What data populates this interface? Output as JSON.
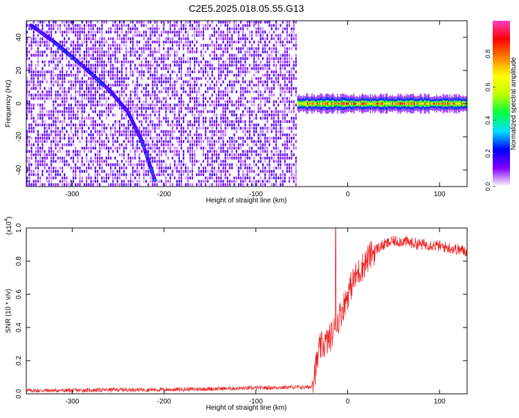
{
  "title": "C2E5.2025.018.05.55.G13",
  "chart_data": [
    {
      "type": "heatmap",
      "xlabel": "Height of straight line (km)",
      "ylabel": "Frequency (Hz)",
      "xlim": [
        -350,
        130
      ],
      "ylim": [
        -50,
        50
      ],
      "xticks": [
        -300,
        -200,
        -100,
        0,
        100
      ],
      "xtick_labels": [
        "-300",
        "-200",
        "-100",
        "0",
        "100"
      ],
      "yticks": [
        -40,
        -20,
        0,
        20,
        40
      ],
      "ytick_labels": [
        "-40",
        "-20",
        "0",
        "20",
        "40"
      ],
      "noise_region_x": [
        -350,
        -55
      ],
      "blank_region_x": [
        -55,
        130
      ],
      "signal_trace": {
        "description_points": [
          [
            -345,
            47
          ],
          [
            -320,
            37
          ],
          [
            -290,
            23
          ],
          [
            -260,
            8
          ],
          [
            -240,
            -5
          ],
          [
            -225,
            -22
          ],
          [
            -210,
            -47
          ]
        ],
        "amplitude": 0.35
      },
      "signal_band": {
        "x": [
          -55,
          130
        ],
        "frequency_center": 0,
        "frequency_halfwidth": 3,
        "peak_amplitude": 0.95
      },
      "colorbar": {
        "label": "Normalized spectral amplitude",
        "range": [
          0,
          1
        ],
        "ticks": [
          0.0,
          0.2,
          0.4,
          0.6,
          0.8
        ],
        "tick_labels": [
          "0.0",
          "0.2",
          "0.4",
          "0.6",
          "0.8"
        ],
        "colors": [
          "#ffffff",
          "#8000ff",
          "#0000ff",
          "#00e0ff",
          "#00ff40",
          "#c0ff00",
          "#ffff00",
          "#ff8000",
          "#ff0000",
          "#ff40c0"
        ]
      }
    },
    {
      "type": "line",
      "xlabel": "Height of straight line (km)",
      "ylabel": "SNR (10 * v/v)",
      "y_multiplier": "(x10",
      "y_multiplier_exp": "4",
      "y_multiplier_close": ")",
      "xlim": [
        -350,
        130
      ],
      "ylim": [
        0,
        1.0
      ],
      "xticks": [
        -300,
        -200,
        -100,
        0,
        100
      ],
      "xtick_labels": [
        "-300",
        "-200",
        "-100",
        "0",
        "100"
      ],
      "yticks": [
        0.0,
        0.2,
        0.4,
        0.6,
        0.8,
        1.0
      ],
      "ytick_labels": [
        "0.0",
        "0.2",
        "0.4",
        "0.6",
        "0.8",
        "1.0"
      ],
      "color": "#ee2222",
      "series": [
        {
          "x": [
            -350,
            -300,
            -250,
            -200,
            -150,
            -100,
            -60,
            -40,
            -35,
            -30,
            -25,
            -20,
            -15,
            -12,
            -10,
            -5,
            0,
            5,
            10,
            20,
            30,
            40,
            50,
            60,
            70,
            80,
            90,
            100,
            110,
            120,
            130
          ],
          "y": [
            0.02,
            0.02,
            0.025,
            0.025,
            0.03,
            0.035,
            0.04,
            0.04,
            0.15,
            0.28,
            0.3,
            0.33,
            0.38,
            0.42,
            0.45,
            0.52,
            0.6,
            0.67,
            0.72,
            0.8,
            0.87,
            0.9,
            0.92,
            0.92,
            0.91,
            0.9,
            0.9,
            0.89,
            0.88,
            0.87,
            0.86
          ],
          "spikes": [
            [
              -13,
              1.0
            ]
          ]
        }
      ]
    }
  ]
}
